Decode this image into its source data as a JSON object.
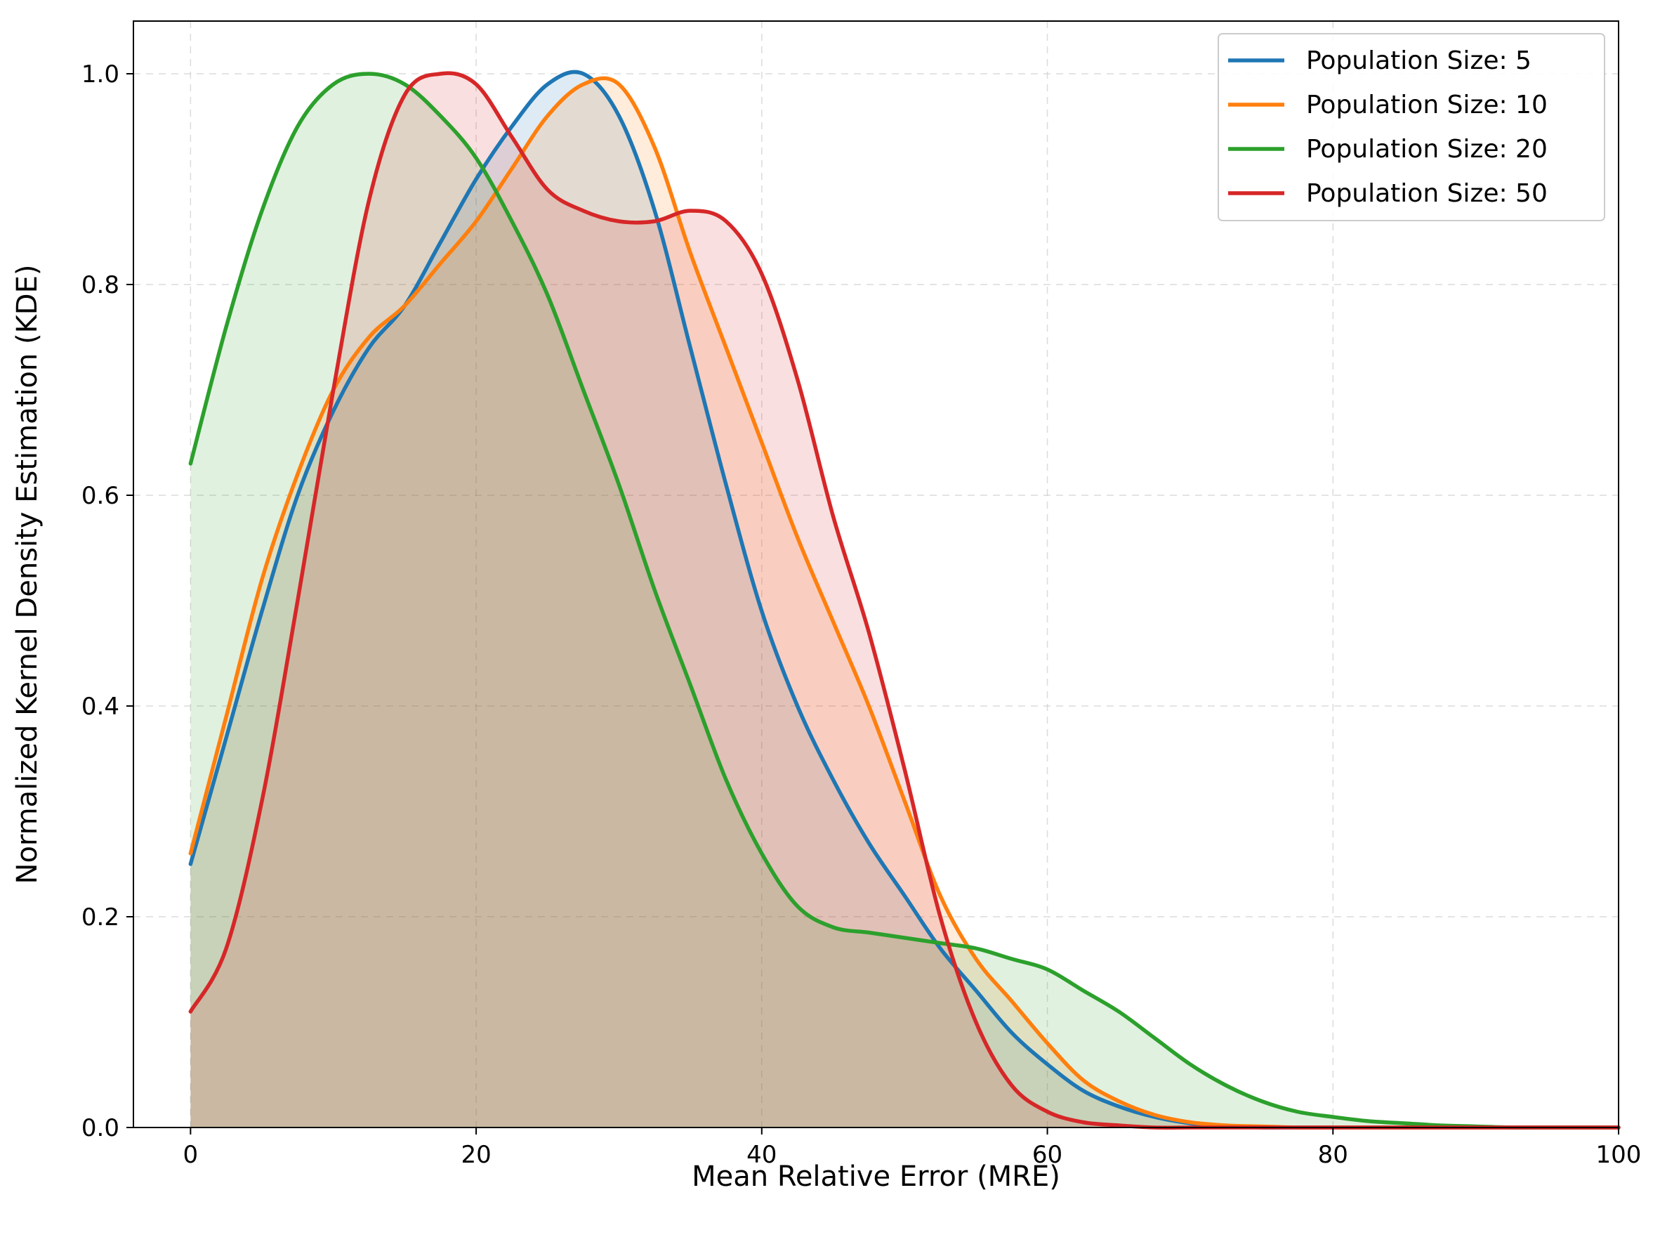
{
  "chart_data": {
    "type": "area",
    "title": "",
    "xlabel": "Mean Relative Error (MRE)",
    "ylabel": "Normalized Kernel Density Estimation (KDE)",
    "xlim": [
      -4,
      100
    ],
    "ylim": [
      0,
      1.05
    ],
    "xticks": [
      0,
      20,
      40,
      60,
      80,
      100
    ],
    "yticks": [
      0.0,
      0.2,
      0.4,
      0.6,
      0.8,
      1.0
    ],
    "xtick_labels": [
      "0",
      "20",
      "40",
      "60",
      "80",
      "100"
    ],
    "ytick_labels": [
      "0.0",
      "0.2",
      "0.4",
      "0.6",
      "0.8",
      "1.0"
    ],
    "grid": true,
    "legend_position": "top-right",
    "x": [
      0,
      2.5,
      5,
      7.5,
      10,
      12.5,
      15,
      17.5,
      20,
      22.5,
      25,
      27.5,
      30,
      32.5,
      35,
      37.5,
      40,
      42.5,
      45,
      47.5,
      50,
      52.5,
      55,
      57.5,
      60,
      62.5,
      65,
      67.5,
      70,
      72.5,
      75,
      77.5,
      80,
      82.5,
      85,
      87.5,
      90,
      92.5,
      95,
      97.5,
      100
    ],
    "series": [
      {
        "name": "Population Size: 5",
        "color": "#1f77b4",
        "values": [
          0.25,
          0.37,
          0.49,
          0.6,
          0.68,
          0.74,
          0.78,
          0.84,
          0.9,
          0.95,
          0.99,
          1.0,
          0.96,
          0.87,
          0.74,
          0.61,
          0.49,
          0.4,
          0.33,
          0.27,
          0.22,
          0.17,
          0.13,
          0.09,
          0.06,
          0.035,
          0.02,
          0.01,
          0.004,
          0.001,
          0.0,
          0.0,
          0.0,
          0.0,
          0.0,
          0.0,
          0.0,
          0.0,
          0.0,
          0.0,
          0.0
        ]
      },
      {
        "name": "Population Size: 10",
        "color": "#ff7f0e",
        "values": [
          0.26,
          0.39,
          0.52,
          0.62,
          0.7,
          0.75,
          0.78,
          0.82,
          0.86,
          0.91,
          0.96,
          0.99,
          0.99,
          0.93,
          0.83,
          0.74,
          0.65,
          0.56,
          0.48,
          0.4,
          0.31,
          0.22,
          0.16,
          0.12,
          0.08,
          0.045,
          0.025,
          0.012,
          0.005,
          0.002,
          0.001,
          0.0,
          0.0,
          0.0,
          0.0,
          0.0,
          0.0,
          0.0,
          0.0,
          0.0,
          0.0
        ]
      },
      {
        "name": "Population Size: 20",
        "color": "#2ca02c",
        "values": [
          0.63,
          0.76,
          0.87,
          0.95,
          0.99,
          1.0,
          0.99,
          0.96,
          0.92,
          0.86,
          0.79,
          0.7,
          0.61,
          0.51,
          0.42,
          0.33,
          0.26,
          0.21,
          0.19,
          0.185,
          0.18,
          0.175,
          0.17,
          0.16,
          0.15,
          0.13,
          0.11,
          0.085,
          0.06,
          0.04,
          0.025,
          0.015,
          0.01,
          0.006,
          0.004,
          0.002,
          0.001,
          0.0,
          0.0,
          0.0,
          0.0
        ]
      },
      {
        "name": "Population Size: 50",
        "color": "#d62728",
        "values": [
          0.11,
          0.17,
          0.31,
          0.5,
          0.7,
          0.88,
          0.98,
          1.0,
          0.99,
          0.94,
          0.89,
          0.87,
          0.86,
          0.86,
          0.87,
          0.86,
          0.81,
          0.71,
          0.58,
          0.47,
          0.34,
          0.2,
          0.1,
          0.04,
          0.015,
          0.005,
          0.002,
          0.0,
          0.0,
          0.0,
          0.0,
          0.0,
          0.0,
          0.0,
          0.0,
          0.0,
          0.0,
          0.0,
          0.0,
          0.0,
          0.0
        ]
      }
    ]
  }
}
